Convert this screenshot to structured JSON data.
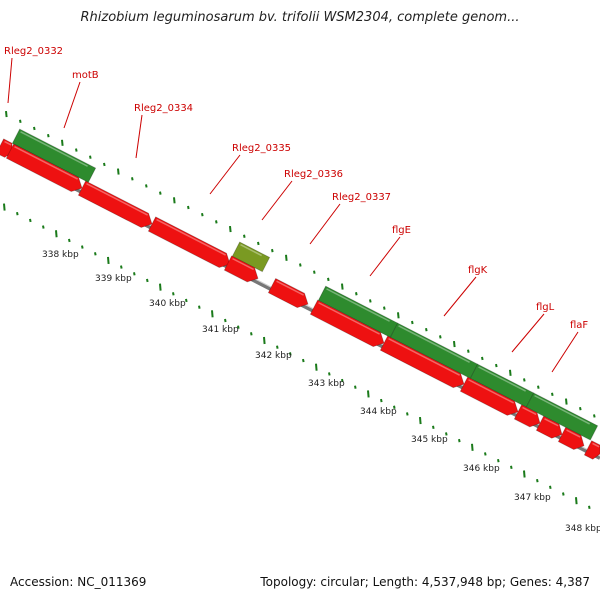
{
  "title": "Rhizobium leguminosarum bv. trifolii WSM2304, complete genom...",
  "footer": {
    "accession": "Accession: NC_011369",
    "summary": "Topology: circular; Length: 4,537,948 bp; Genes: 4,387"
  },
  "colors": {
    "forward_gene": "#2e8b2e",
    "reverse_gene": "#ee1111",
    "highlight_gene": "#7a9a22",
    "backbone": "#999999",
    "label": "#cc0000",
    "tick": "#1a7a1a"
  },
  "gene_labels": [
    "Rleg2_0332",
    "motB",
    "Rleg2_0334",
    "Rleg2_0335",
    "Rleg2_0336",
    "Rleg2_0337",
    "flgE",
    "flgK",
    "flgL",
    "flaF"
  ],
  "scale_labels": [
    "338 kbp",
    "339 kbp",
    "340 kbp",
    "341 kbp",
    "342 kbp",
    "343 kbp",
    "344 kbp",
    "345 kbp",
    "346 kbp",
    "347 kbp",
    "348 kbp"
  ]
}
